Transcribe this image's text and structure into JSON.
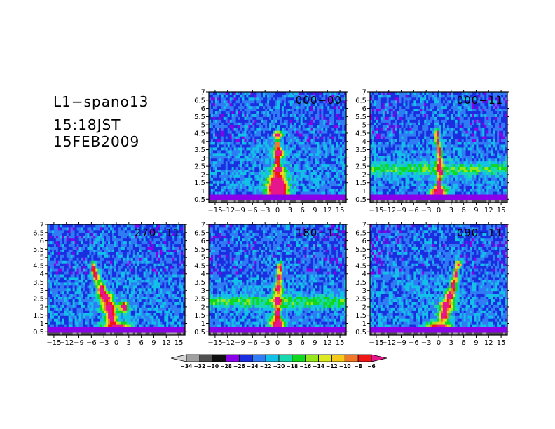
{
  "header": {
    "title": "L1−spano13",
    "time": "15:18JST",
    "date": "15FEB2009"
  },
  "chart_data": [
    {
      "type": "heatmap",
      "title": "000−00",
      "xlim": [
        -16.5,
        16.5
      ],
      "ylim": [
        0.3,
        7
      ],
      "xticks": [
        -15,
        -12,
        -9,
        -6,
        -3,
        0,
        3,
        6,
        9,
        12,
        15
      ],
      "yticks": [
        0.5,
        1,
        1.5,
        2,
        2.5,
        3,
        3.5,
        4,
        4.5,
        5,
        5.5,
        6,
        6.5,
        7
      ],
      "xtick_labels": [
        "−15",
        "−12",
        "−9",
        "−6",
        "−3",
        "0",
        "3",
        "6",
        "9",
        "12",
        "15"
      ],
      "ytick_labels": [
        "0.5",
        "1",
        "1.5",
        "2",
        "2.5",
        "3",
        "3.5",
        "4",
        "4.5",
        "5",
        "5.5",
        "6",
        "6.5",
        "7"
      ]
    },
    {
      "type": "heatmap",
      "title": "000−11",
      "xlim": [
        -16.5,
        16.5
      ],
      "ylim": [
        0.3,
        7
      ],
      "xticks": [
        -15,
        -12,
        -9,
        -6,
        -3,
        0,
        3,
        6,
        9,
        12,
        15
      ],
      "yticks": [
        0.5,
        1,
        1.5,
        2,
        2.5,
        3,
        3.5,
        4,
        4.5,
        5,
        5.5,
        6,
        6.5,
        7
      ],
      "xtick_labels": [
        "−15",
        "−12",
        "−9",
        "−6",
        "−3",
        "0",
        "3",
        "6",
        "9",
        "12",
        "15"
      ],
      "ytick_labels": [
        "0.5",
        "1",
        "1.5",
        "2",
        "2.5",
        "3",
        "3.5",
        "4",
        "4.5",
        "5",
        "5.5",
        "6",
        "6.5",
        "7"
      ]
    },
    {
      "type": "heatmap",
      "title": "270−11",
      "xlim": [
        -16.5,
        16.5
      ],
      "ylim": [
        0.3,
        7
      ],
      "xticks": [
        -15,
        -12,
        -9,
        -6,
        -3,
        0,
        3,
        6,
        9,
        12,
        15
      ],
      "yticks": [
        0.5,
        1,
        1.5,
        2,
        2.5,
        3,
        3.5,
        4,
        4.5,
        5,
        5.5,
        6,
        6.5,
        7
      ],
      "xtick_labels": [
        "−15",
        "−12",
        "−9",
        "−6",
        "−3",
        "0",
        "3",
        "6",
        "9",
        "12",
        "15"
      ],
      "ytick_labels": [
        "0.5",
        "1",
        "1.5",
        "2",
        "2.5",
        "3",
        "3.5",
        "4",
        "4.5",
        "5",
        "5.5",
        "6",
        "6.5",
        "7"
      ]
    },
    {
      "type": "heatmap",
      "title": "180−11",
      "xlim": [
        -16.5,
        16.5
      ],
      "ylim": [
        0.3,
        7
      ],
      "xticks": [
        -15,
        -12,
        -9,
        -6,
        -3,
        0,
        3,
        6,
        9,
        12,
        15
      ],
      "yticks": [
        0.5,
        1,
        1.5,
        2,
        2.5,
        3,
        3.5,
        4,
        4.5,
        5,
        5.5,
        6,
        6.5,
        7
      ],
      "xtick_labels": [
        "−15",
        "−12",
        "−9",
        "−6",
        "−3",
        "0",
        "3",
        "6",
        "9",
        "12",
        "15"
      ],
      "ytick_labels": [
        "0.5",
        "1",
        "1.5",
        "2",
        "2.5",
        "3",
        "3.5",
        "4",
        "4.5",
        "5",
        "5.5",
        "6",
        "6.5",
        "7"
      ]
    },
    {
      "type": "heatmap",
      "title": "090−11",
      "xlim": [
        -16.5,
        16.5
      ],
      "ylim": [
        0.3,
        7
      ],
      "xticks": [
        -15,
        -12,
        -9,
        -6,
        -3,
        0,
        3,
        6,
        9,
        12,
        15
      ],
      "yticks": [
        0.5,
        1,
        1.5,
        2,
        2.5,
        3,
        3.5,
        4,
        4.5,
        5,
        5.5,
        6,
        6.5,
        7
      ],
      "xtick_labels": [
        "−15",
        "−12",
        "−9",
        "−6",
        "−3",
        "0",
        "3",
        "6",
        "9",
        "12",
        "15"
      ],
      "ytick_labels": [
        "0.5",
        "1",
        "1.5",
        "2",
        "2.5",
        "3",
        "3.5",
        "4",
        "4.5",
        "5",
        "5.5",
        "6",
        "6.5",
        "7"
      ]
    }
  ],
  "colorbar": {
    "labels": [
      "−34",
      "−32",
      "−30",
      "−28",
      "−26",
      "−24",
      "−22",
      "−20",
      "−18",
      "−16",
      "−14",
      "−12",
      "−10",
      "−8",
      "−6"
    ],
    "colors": [
      "#d8d8d8",
      "#a0a0a0",
      "#505050",
      "#101010",
      "#8a00e8",
      "#1a2ee0",
      "#2f7cf5",
      "#12c0e8",
      "#18d8b0",
      "#10d820",
      "#96e81c",
      "#dce820",
      "#f5c81c",
      "#f0782a",
      "#f01616",
      "#e8168c"
    ]
  }
}
